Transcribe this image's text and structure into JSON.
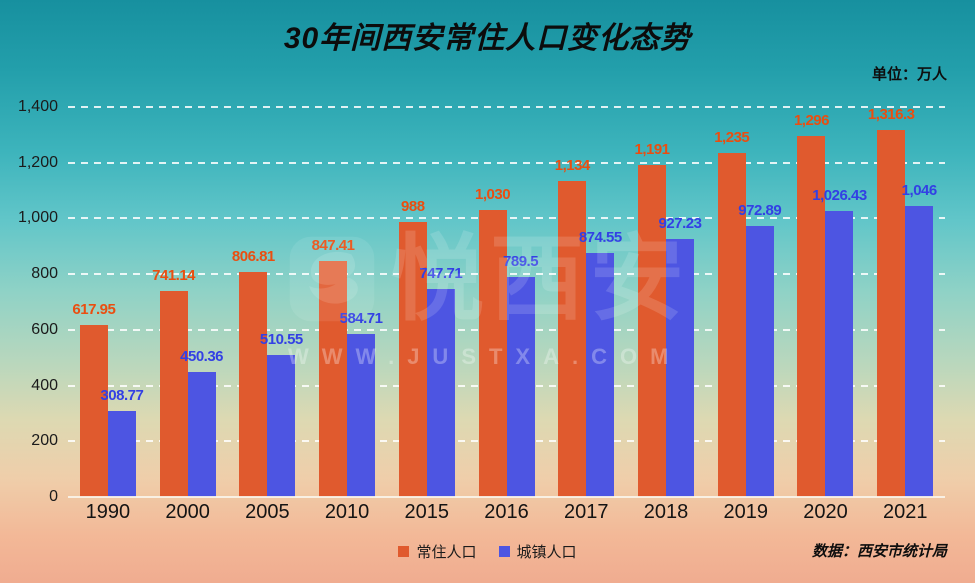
{
  "header": {
    "title": "30年间西安常住人口变化态势",
    "unit_label": "单位：万人"
  },
  "footer": {
    "source_label": "数据：西安市统计局"
  },
  "watermark": {
    "brand": "悦西安",
    "url": "WWW.JUSTXA.COM"
  },
  "chart_data": {
    "type": "bar",
    "title": "30年间西安常住人口变化态势",
    "unit": "万人",
    "categories": [
      "1990",
      "2000",
      "2005",
      "2010",
      "2015",
      "2016",
      "2017",
      "2018",
      "2019",
      "2020",
      "2021"
    ],
    "series": [
      {
        "name": "常住人口",
        "color": "#E05A2E",
        "label_color": "#EA4E10",
        "values": [
          617.95,
          741.14,
          806.81,
          847.41,
          988,
          1030,
          1134,
          1191,
          1235,
          1296,
          1316.3
        ],
        "labels": [
          "617.95",
          "741.14",
          "806.81",
          "847.41",
          "988",
          "1,030",
          "1,134",
          "1,191",
          "1,235",
          "1,296",
          "1,316.3"
        ]
      },
      {
        "name": "城镇人口",
        "color": "#4D55E2",
        "label_color": "#3340E4",
        "values": [
          308.77,
          450.36,
          510.55,
          584.71,
          747.71,
          789.5,
          874.55,
          927.23,
          972.89,
          1026.43,
          1046
        ],
        "labels": [
          "308.77",
          "450.36",
          "510.55",
          "584.71",
          "747.71",
          "789.5",
          "874.55",
          "927.23",
          "972.89",
          "1,026.43",
          "1,046"
        ]
      }
    ],
    "ylim": [
      0,
      1400
    ],
    "yticks": [
      "0",
      "200",
      "400",
      "600",
      "800",
      "1,000",
      "1,200",
      "1,400"
    ],
    "grid": true,
    "gridline_style": "dashed-white",
    "legend_position": "bottom-center",
    "source": "西安市统计局"
  }
}
